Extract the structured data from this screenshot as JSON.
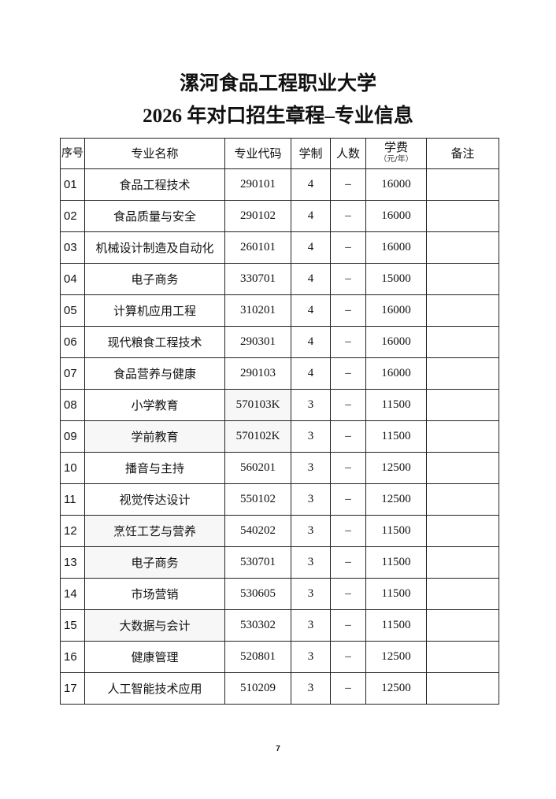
{
  "title_line1": "漯河食品工程职业大学",
  "title_line2": "2026 年对口招生章程–专业信息",
  "headers": {
    "seq": "序号",
    "name": "专业名称",
    "code": "专业代码",
    "years": "学制",
    "count": "人数",
    "fee": "学费",
    "fee_unit": "（元/年）",
    "note": "备注"
  },
  "rows": [
    {
      "seq": "01",
      "name": "食品工程技术",
      "code": "290101",
      "years": "4",
      "count": "–",
      "fee": "16000",
      "note": ""
    },
    {
      "seq": "02",
      "name": "食品质量与安全",
      "code": "290102",
      "years": "4",
      "count": "–",
      "fee": "16000",
      "note": ""
    },
    {
      "seq": "03",
      "name": "机械设计制造及自动化",
      "code": "260101",
      "years": "4",
      "count": "–",
      "fee": "16000",
      "note": ""
    },
    {
      "seq": "04",
      "name": "电子商务",
      "code": "330701",
      "years": "4",
      "count": "–",
      "fee": "15000",
      "note": ""
    },
    {
      "seq": "05",
      "name": "计算机应用工程",
      "code": "310201",
      "years": "4",
      "count": "–",
      "fee": "16000",
      "note": ""
    },
    {
      "seq": "06",
      "name": "现代粮食工程技术",
      "code": "290301",
      "years": "4",
      "count": "–",
      "fee": "16000",
      "note": ""
    },
    {
      "seq": "07",
      "name": "食品营养与健康",
      "code": "290103",
      "years": "4",
      "count": "–",
      "fee": "16000",
      "note": ""
    },
    {
      "seq": "08",
      "name": "小学教育",
      "code": "570103K",
      "years": "3",
      "count": "–",
      "fee": "11500",
      "note": ""
    },
    {
      "seq": "09",
      "name": "学前教育",
      "code": "570102K",
      "years": "3",
      "count": "–",
      "fee": "11500",
      "note": ""
    },
    {
      "seq": "10",
      "name": "播音与主持",
      "code": "560201",
      "years": "3",
      "count": "–",
      "fee": "12500",
      "note": ""
    },
    {
      "seq": "11",
      "name": "视觉传达设计",
      "code": "550102",
      "years": "3",
      "count": "–",
      "fee": "12500",
      "note": ""
    },
    {
      "seq": "12",
      "name": "烹饪工艺与营养",
      "code": "540202",
      "years": "3",
      "count": "–",
      "fee": "11500",
      "note": ""
    },
    {
      "seq": "13",
      "name": "电子商务",
      "code": "530701",
      "years": "3",
      "count": "–",
      "fee": "11500",
      "note": ""
    },
    {
      "seq": "14",
      "name": "市场营销",
      "code": "530605",
      "years": "3",
      "count": "–",
      "fee": "11500",
      "note": ""
    },
    {
      "seq": "15",
      "name": "大数据与会计",
      "code": "530302",
      "years": "3",
      "count": "–",
      "fee": "11500",
      "note": ""
    },
    {
      "seq": "16",
      "name": "健康管理",
      "code": "520801",
      "years": "3",
      "count": "–",
      "fee": "12500",
      "note": ""
    },
    {
      "seq": "17",
      "name": "人工智能技术应用",
      "code": "510209",
      "years": "3",
      "count": "–",
      "fee": "12500",
      "note": ""
    }
  ],
  "page_number": "7"
}
